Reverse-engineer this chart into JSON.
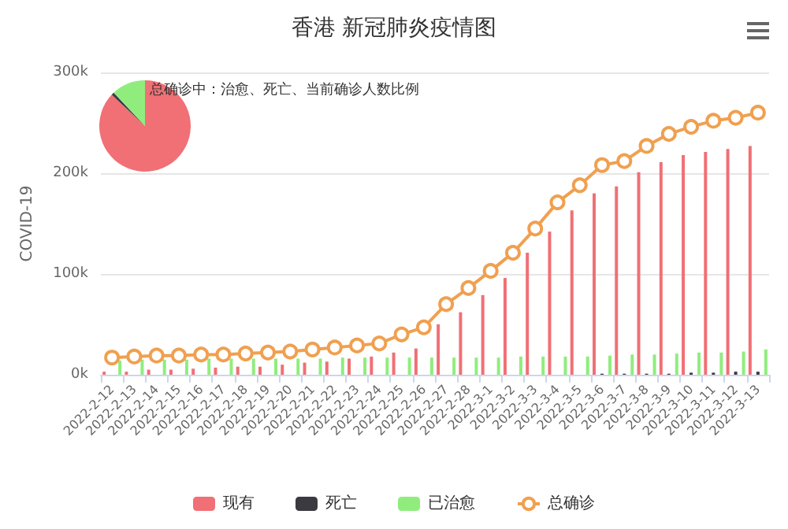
{
  "chart_data": [
    {
      "type": "bar",
      "title": "香港 新冠肺炎疫情图",
      "ylabel": "COVID-19",
      "categories": [
        "2022-2-12",
        "2022-2-13",
        "2022-2-14",
        "2022-2-15",
        "2022-2-16",
        "2022-2-17",
        "2022-2-18",
        "2022-2-19",
        "2022-2-20",
        "2022-2-21",
        "2022-2-22",
        "2022-2-23",
        "2022-2-24",
        "2022-2-25",
        "2022-2-26",
        "2022-2-27",
        "2022-2-28",
        "2022-3-1",
        "2022-3-2",
        "2022-3-3",
        "2022-3-4",
        "2022-3-5",
        "2022-3-6",
        "2022-3-7",
        "2022-3-8",
        "2022-3-9",
        "2022-3-10",
        "2022-3-11",
        "2022-3-12",
        "2022-3-13"
      ],
      "series": [
        {
          "name": "现有",
          "color": "#f07075",
          "values": [
            3000,
            3000,
            5000,
            5000,
            6000,
            7000,
            8000,
            8000,
            10000,
            12000,
            13000,
            16000,
            18000,
            22000,
            26000,
            50000,
            62000,
            79000,
            96000,
            121000,
            142000,
            163000,
            180000,
            187000,
            201000,
            211000,
            218000,
            221000,
            224000,
            227000
          ]
        },
        {
          "name": "死亡",
          "color": "#3a3a40",
          "values": [
            0,
            0,
            0,
            0,
            0,
            0,
            0,
            0,
            0,
            0,
            0,
            0,
            0,
            0,
            0,
            0,
            0,
            0,
            0,
            0,
            0,
            0,
            1000,
            1000,
            1000,
            1000,
            2000,
            2000,
            3000,
            3000
          ]
        },
        {
          "name": "已治愈",
          "color": "#90ed7d",
          "values": [
            14000,
            15000,
            15000,
            15000,
            16000,
            16000,
            16000,
            16000,
            16000,
            16000,
            17000,
            17000,
            17000,
            17000,
            17000,
            17000,
            17000,
            17000,
            18000,
            18000,
            18000,
            18000,
            19000,
            20000,
            20000,
            21000,
            22000,
            22000,
            23000,
            25000
          ]
        },
        {
          "name": "总确诊",
          "type": "line",
          "color": "#f0a050",
          "values": [
            17000,
            18000,
            19000,
            19000,
            20000,
            20000,
            21000,
            22000,
            23000,
            25000,
            27000,
            29000,
            31000,
            40000,
            47000,
            70000,
            86000,
            103000,
            121000,
            145000,
            171000,
            188000,
            208000,
            212000,
            227000,
            239000,
            246000,
            252000,
            255000,
            260000
          ]
        }
      ],
      "ylim": [
        0,
        300000
      ],
      "yticks": [
        {
          "value": 0,
          "label": "0k"
        },
        {
          "value": 100000,
          "label": "100k"
        },
        {
          "value": 200000,
          "label": "200k"
        },
        {
          "value": 300000,
          "label": "300k"
        }
      ],
      "grid": "y",
      "legend": "bottom",
      "marker": "circle"
    },
    {
      "type": "pie",
      "title": "总确诊中：治愈、死亡、当前确诊人数比例",
      "categories": [
        null,
        null,
        null
      ],
      "values": [
        87,
        1,
        12
      ],
      "colors": [
        "#f07075",
        "#3a3a40",
        "#90ed7d"
      ]
    }
  ]
}
